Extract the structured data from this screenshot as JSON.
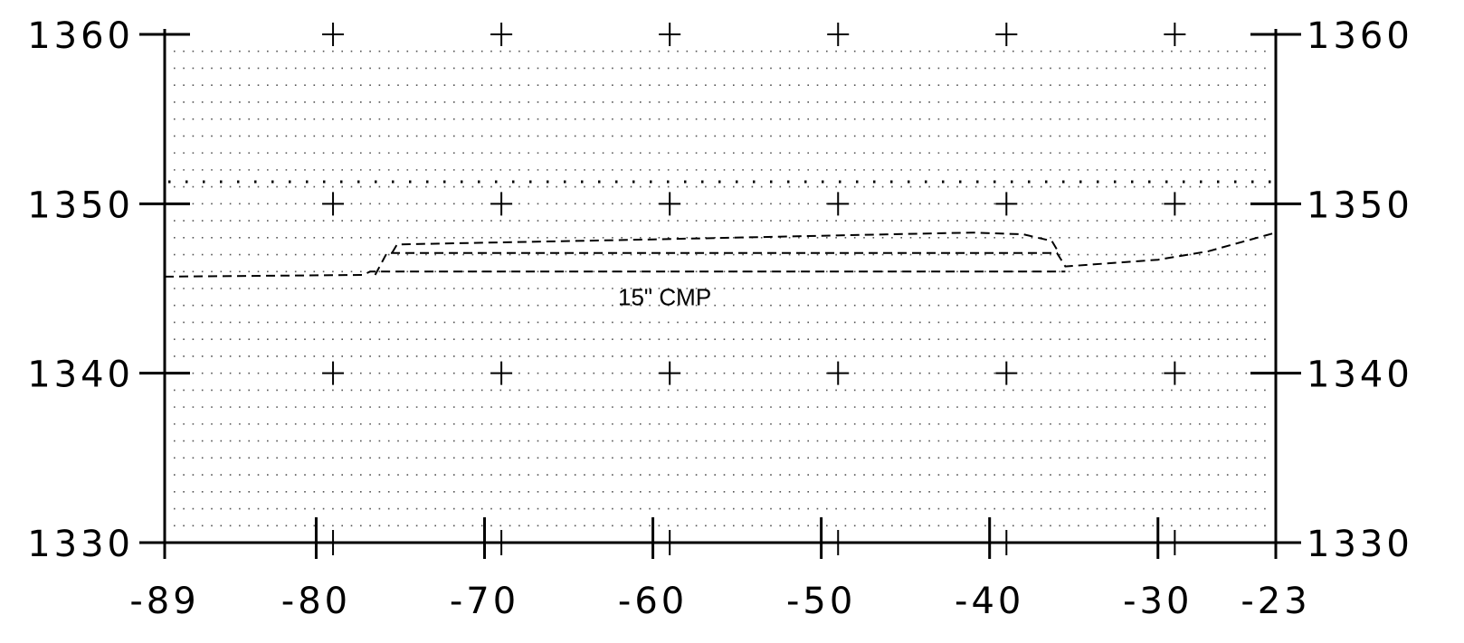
{
  "chart_data": {
    "type": "line",
    "title": "",
    "xlabel": "",
    "ylabel": "",
    "xlim": [
      -89,
      -23
    ],
    "ylim": [
      1330,
      1360
    ],
    "grid": true,
    "grid_style": "dotted",
    "major_marks": "crosses",
    "x_tick_labels": [
      "-89",
      "-80",
      "-70",
      "-60",
      "-50",
      "-40",
      "-30",
      "-23"
    ],
    "x_ticks": [
      -89,
      -80,
      -70,
      -60,
      -50,
      -40,
      -30,
      -23
    ],
    "x_cross_positions": [
      -79,
      -69,
      -59,
      -49,
      -39,
      -29
    ],
    "y_tick_labels": [
      "1330",
      "1340",
      "1350",
      "1360"
    ],
    "y_ticks": [
      1330,
      1340,
      1350,
      1360
    ],
    "y_label_sides": [
      "left",
      "right"
    ],
    "reference_lines": [
      {
        "axis": "y",
        "value": 1351.3,
        "style": "dotted"
      }
    ],
    "series": [
      {
        "style": "dashed",
        "points": [
          [
            -89,
            1345.7
          ],
          [
            -77.2,
            1345.8
          ],
          [
            -76.8,
            1346.0
          ],
          [
            -75.5,
            1346.0
          ],
          [
            -55,
            1346.0
          ],
          [
            -35.5,
            1346.0
          ]
        ]
      },
      {
        "style": "dashed",
        "points": [
          [
            -76.5,
            1345.8
          ],
          [
            -75.8,
            1347.1
          ],
          [
            -55,
            1347.1
          ],
          [
            -36,
            1347.1
          ],
          [
            -35.5,
            1346.3
          ],
          [
            -30,
            1346.7
          ],
          [
            -27,
            1347.2
          ],
          [
            -23,
            1348.3
          ]
        ]
      },
      {
        "style": "dashed",
        "points": [
          [
            -75.5,
            1347.1
          ],
          [
            -75.2,
            1347.6
          ],
          [
            -60,
            1347.9
          ],
          [
            -46,
            1348.2
          ],
          [
            -41,
            1348.3
          ],
          [
            -38,
            1348.2
          ],
          [
            -36.3,
            1347.8
          ],
          [
            -36,
            1347.3
          ]
        ]
      }
    ],
    "annotations": [
      {
        "text": "15\"  CMP",
        "x": -59.3,
        "y": 1344.0
      }
    ],
    "colors": {
      "axis": "#000000",
      "grid": "#555555",
      "line": "#000000",
      "background": "#ffffff"
    }
  }
}
